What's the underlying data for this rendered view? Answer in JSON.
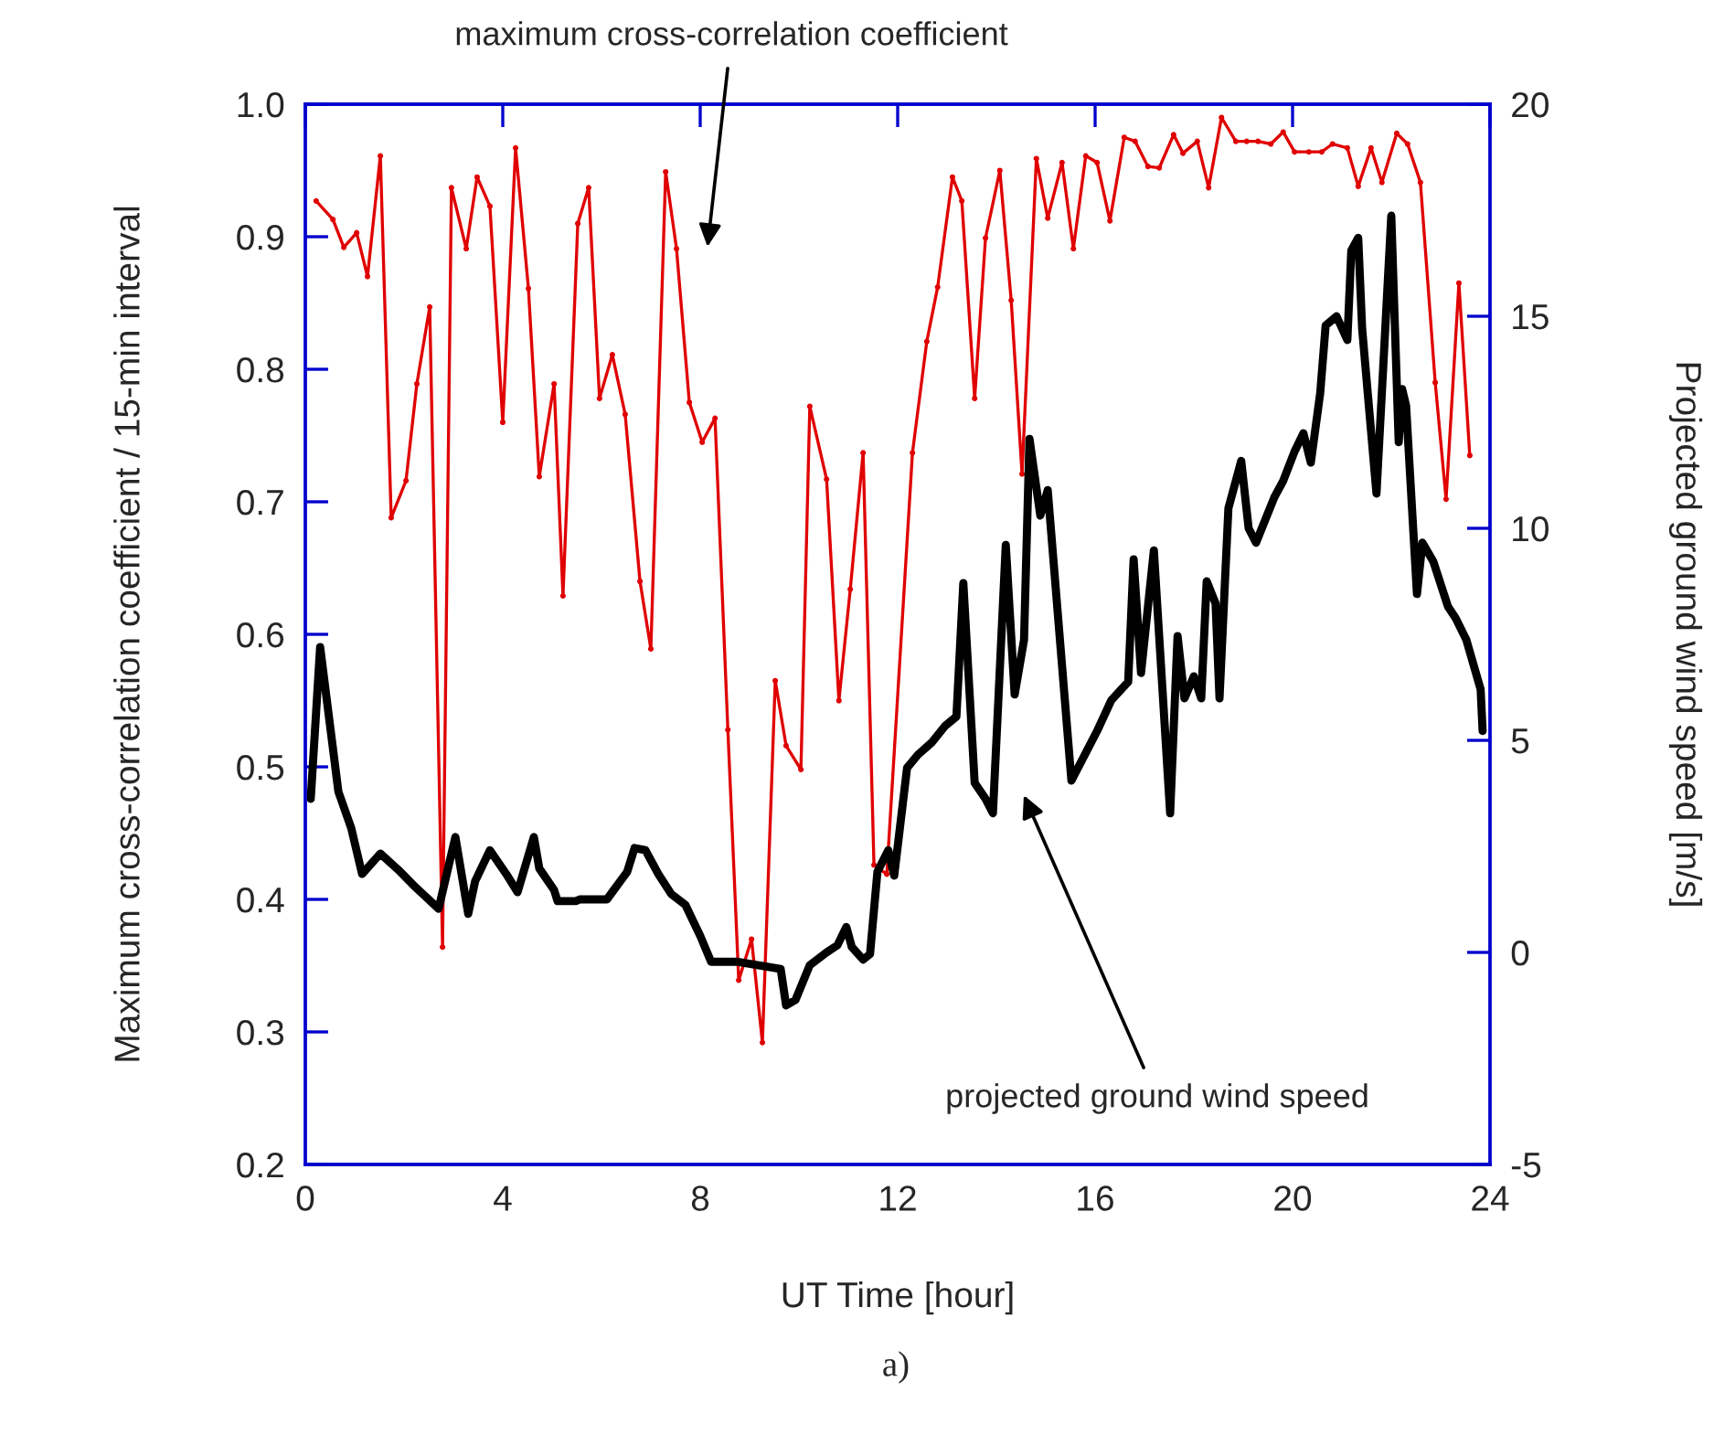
{
  "chart_data": {
    "type": "line",
    "xlabel": "UT Time [hour]",
    "ylabel": "Maximum cross-correlation coefficient / 15-min interval",
    "y2label": "Projected ground wind speed [m/s]",
    "xlim": [
      0,
      24
    ],
    "xticks": [
      0,
      4,
      8,
      12,
      16,
      20,
      24
    ],
    "ylim": [
      0.2,
      1.0
    ],
    "yticks": [
      0.2,
      0.3,
      0.4,
      0.5,
      0.6,
      0.7,
      0.8,
      0.9,
      {
        "value": 1.0,
        "label": "1.0"
      }
    ],
    "y2lim": [
      -5,
      20
    ],
    "y2ticks": [
      -5,
      0,
      5,
      10,
      15,
      20
    ],
    "grid": false,
    "legend": false,
    "series": [
      {
        "color": "#e00000",
        "marker": "circle",
        "line_style": "solid",
        "x": [
          0.22,
          0.56,
          0.78,
          1.04,
          1.26,
          1.52,
          1.74,
          2.04,
          2.26,
          2.52,
          2.78,
          2.96,
          3.26,
          3.48,
          3.74,
          4.0,
          4.26,
          4.52,
          4.74,
          5.04,
          5.22,
          5.52,
          5.74,
          5.96,
          6.22,
          6.48,
          6.78,
          7.0,
          7.3,
          7.52,
          7.78,
          8.04,
          8.3,
          8.56,
          8.78,
          9.04,
          9.26,
          9.52,
          9.74,
          10.04,
          10.22,
          10.56,
          10.81,
          11.04,
          11.3,
          11.52,
          11.78,
          12.3,
          12.59,
          12.81,
          13.11,
          13.3,
          13.56,
          13.78,
          14.07,
          14.3,
          14.52,
          14.81,
          15.04,
          15.33,
          15.56,
          15.81,
          16.04,
          16.3,
          16.59,
          16.81,
          17.07,
          17.3,
          17.59,
          17.78,
          18.07,
          18.3,
          18.56,
          18.85,
          19.07,
          19.3,
          19.56,
          19.81,
          20.04,
          20.33,
          20.59,
          20.81,
          21.11,
          21.33,
          21.59,
          21.81,
          22.11,
          22.33,
          22.59,
          22.89,
          23.11,
          23.37,
          23.59
        ],
        "values": [
          0.927,
          0.913,
          0.892,
          0.903,
          0.87,
          0.961,
          0.688,
          0.716,
          0.789,
          0.847,
          0.364,
          0.937,
          0.891,
          0.945,
          0.923,
          0.76,
          0.967,
          0.861,
          0.719,
          0.789,
          0.629,
          0.91,
          0.937,
          0.778,
          0.811,
          0.766,
          0.64,
          0.589,
          0.949,
          0.891,
          0.775,
          0.745,
          0.763,
          0.528,
          0.339,
          0.37,
          0.292,
          0.565,
          0.516,
          0.498,
          0.772,
          0.717,
          0.55,
          0.634,
          0.737,
          0.426,
          0.419,
          0.737,
          0.821,
          0.862,
          0.945,
          0.927,
          0.778,
          0.899,
          0.95,
          0.852,
          0.721,
          0.959,
          0.914,
          0.956,
          0.891,
          0.961,
          0.956,
          0.912,
          0.975,
          0.972,
          0.953,
          0.952,
          0.977,
          0.963,
          0.972,
          0.937,
          0.99,
          0.972,
          0.972,
          0.972,
          0.97,
          0.979,
          0.964,
          0.964,
          0.964,
          0.97,
          0.967,
          0.938,
          0.967,
          0.941,
          0.978,
          0.97,
          0.941,
          0.79,
          0.702,
          0.865,
          0.735
        ]
      },
      {
        "color": "#000000",
        "axis": "y2",
        "marker": "none",
        "line_style": "solid",
        "x": [
          0.11,
          0.3,
          0.67,
          0.93,
          1.15,
          1.52,
          1.89,
          2.22,
          2.7,
          3.04,
          3.3,
          3.44,
          3.74,
          4.07,
          4.3,
          4.63,
          4.74,
          5.04,
          5.11,
          5.48,
          5.56,
          6.11,
          6.52,
          6.67,
          6.89,
          7.15,
          7.41,
          7.7,
          8.0,
          8.22,
          8.74,
          9.63,
          9.74,
          9.93,
          10.22,
          10.56,
          10.78,
          10.96,
          11.07,
          11.3,
          11.44,
          11.59,
          11.81,
          11.93,
          12.19,
          12.41,
          12.7,
          12.96,
          13.19,
          13.33,
          13.56,
          13.78,
          13.93,
          14.19,
          14.37,
          14.56,
          14.67,
          14.89,
          15.04,
          15.52,
          16.04,
          16.33,
          16.67,
          16.78,
          16.93,
          17.19,
          17.52,
          17.67,
          17.81,
          18.0,
          18.15,
          18.26,
          18.44,
          18.52,
          18.7,
          18.96,
          19.11,
          19.26,
          19.63,
          19.81,
          20.04,
          20.22,
          20.37,
          20.56,
          20.67,
          20.89,
          21.11,
          21.19,
          21.33,
          21.41,
          21.7,
          22.0,
          22.15,
          22.22,
          22.3,
          22.52,
          22.63,
          22.85,
          23.15,
          23.3,
          23.52,
          23.81,
          23.85
        ],
        "values": [
          3.62,
          7.2,
          3.79,
          2.93,
          1.85,
          2.33,
          1.94,
          1.55,
          1.03,
          2.72,
          0.91,
          1.68,
          2.41,
          1.85,
          1.42,
          2.72,
          1.98,
          1.47,
          1.21,
          1.21,
          1.25,
          1.25,
          1.9,
          2.46,
          2.41,
          1.85,
          1.38,
          1.12,
          0.39,
          -0.22,
          -0.22,
          -0.39,
          -1.25,
          -1.12,
          -0.3,
          0.0,
          0.17,
          0.6,
          0.13,
          -0.17,
          -0.04,
          1.9,
          2.41,
          1.81,
          4.35,
          4.66,
          4.96,
          5.34,
          5.56,
          8.71,
          4.0,
          3.62,
          3.28,
          9.61,
          6.08,
          7.37,
          12.11,
          10.3,
          10.9,
          4.05,
          5.22,
          5.95,
          6.38,
          9.27,
          6.59,
          9.48,
          3.28,
          7.46,
          5.99,
          6.51,
          5.99,
          8.75,
          8.23,
          5.99,
          10.47,
          11.59,
          10.0,
          9.66,
          10.73,
          11.12,
          11.81,
          12.24,
          11.55,
          13.19,
          14.78,
          15.0,
          14.44,
          16.55,
          16.85,
          14.7,
          10.82,
          17.37,
          12.03,
          13.28,
          12.89,
          8.45,
          9.66,
          9.22,
          8.15,
          7.89,
          7.37,
          6.2,
          5.22
        ]
      }
    ],
    "annotations": [
      "maximum cross-correlation coefficient",
      "projected ground wind speed",
      "a)"
    ]
  }
}
